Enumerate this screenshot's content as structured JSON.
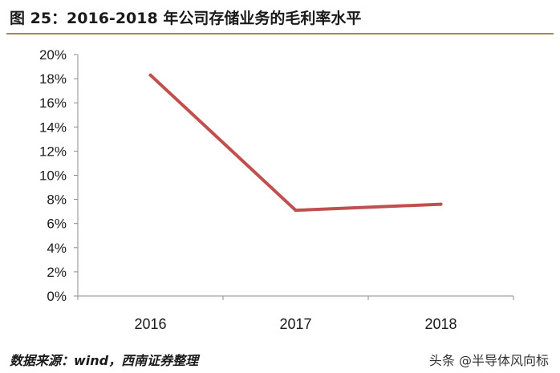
{
  "title": "图 25：2016-2018 年公司存储业务的毛利率水平",
  "source": "数据来源：wind，西南证券整理",
  "watermark": "头条 @半导体风向标",
  "chart_data": {
    "type": "line",
    "title": "图 25：2016-2018 年公司存储业务的毛利率水平",
    "xlabel": "",
    "ylabel": "",
    "categories": [
      "2016",
      "2017",
      "2018"
    ],
    "series": [
      {
        "values": [
          18.3,
          7.1,
          7.6
        ],
        "color": "#c0504d"
      }
    ],
    "y_ticks": [
      "20%",
      "18%",
      "16%",
      "14%",
      "12%",
      "10%",
      "8%",
      "6%",
      "4%",
      "2%",
      "0%"
    ],
    "ylim": [
      0,
      20
    ],
    "grid": false,
    "legend": "none"
  }
}
